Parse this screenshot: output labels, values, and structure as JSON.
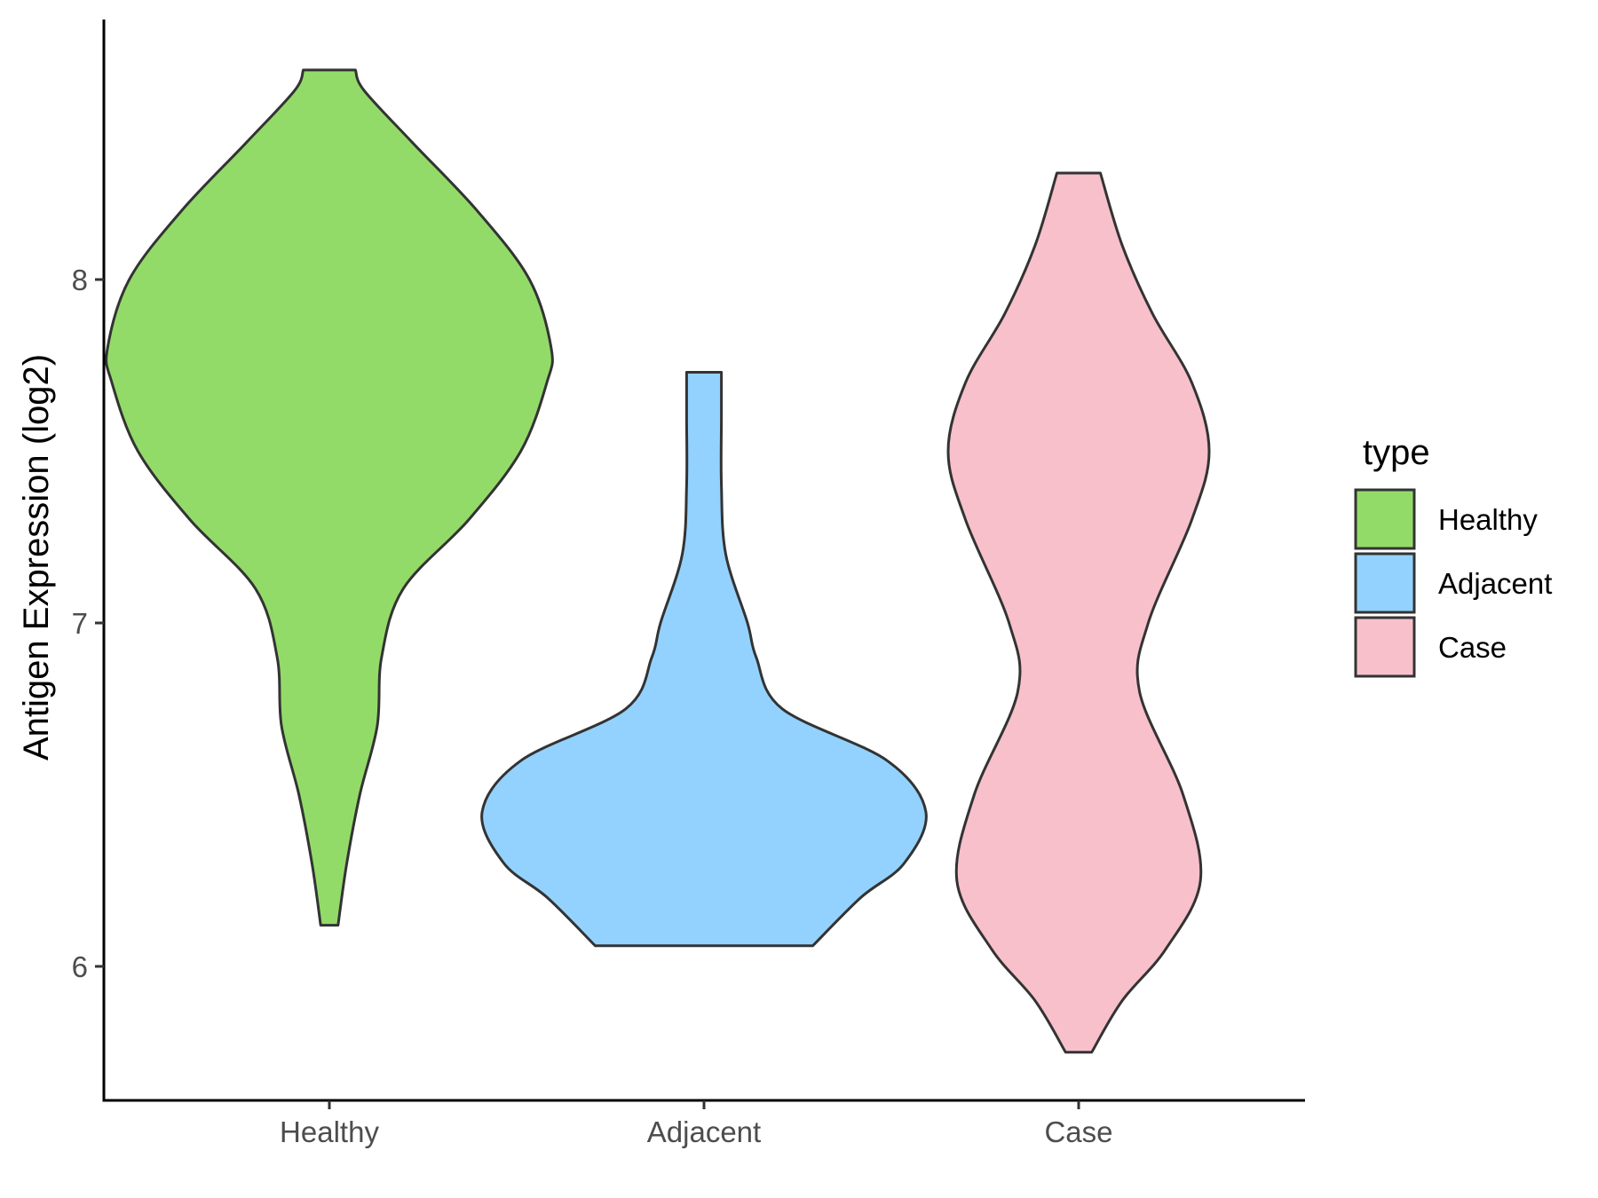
{
  "chart_data": {
    "type": "violin",
    "title": "",
    "xlabel": "",
    "ylabel": "Antigen Expression (log2)",
    "categories": [
      "Healthy",
      "Adjacent",
      "Case"
    ],
    "y_ticks": [
      "6",
      "7",
      "8"
    ],
    "ylim": [
      5.6,
      8.8
    ],
    "grid": false,
    "legend": {
      "title": "type",
      "placement": "right",
      "items": [
        {
          "label": "Healthy",
          "color": "#93DB69"
        },
        {
          "label": "Adjacent",
          "color": "#93D2FE"
        },
        {
          "label": "Case",
          "color": "#F7C0CB"
        }
      ]
    },
    "outline_color": "#333333",
    "series": [
      {
        "name": "Healthy",
        "color": "#93DB69",
        "min": 6.12,
        "max": 8.61,
        "density_profile": [
          [
            6.12,
            0.02
          ],
          [
            6.3,
            0.04
          ],
          [
            6.5,
            0.07
          ],
          [
            6.7,
            0.11
          ],
          [
            6.9,
            0.12
          ],
          [
            7.1,
            0.17
          ],
          [
            7.3,
            0.32
          ],
          [
            7.5,
            0.44
          ],
          [
            7.7,
            0.5
          ],
          [
            7.8,
            0.51
          ],
          [
            8.0,
            0.46
          ],
          [
            8.2,
            0.34
          ],
          [
            8.4,
            0.19
          ],
          [
            8.55,
            0.08
          ],
          [
            8.61,
            0.06
          ]
        ]
      },
      {
        "name": "Adjacent",
        "color": "#93D2FE",
        "min": 6.06,
        "max": 7.73,
        "density_profile": [
          [
            6.06,
            0.25
          ],
          [
            6.2,
            0.36
          ],
          [
            6.3,
            0.46
          ],
          [
            6.45,
            0.51
          ],
          [
            6.6,
            0.42
          ],
          [
            6.75,
            0.18
          ],
          [
            6.9,
            0.12
          ],
          [
            7.0,
            0.1
          ],
          [
            7.2,
            0.05
          ],
          [
            7.4,
            0.04
          ],
          [
            7.6,
            0.04
          ],
          [
            7.73,
            0.04
          ]
        ]
      },
      {
        "name": "Case",
        "color": "#F7C0CB",
        "min": 5.75,
        "max": 8.31,
        "density_profile": [
          [
            5.75,
            0.03
          ],
          [
            5.9,
            0.1
          ],
          [
            6.05,
            0.2
          ],
          [
            6.25,
            0.28
          ],
          [
            6.5,
            0.24
          ],
          [
            6.8,
            0.14
          ],
          [
            7.0,
            0.16
          ],
          [
            7.3,
            0.26
          ],
          [
            7.5,
            0.3
          ],
          [
            7.7,
            0.26
          ],
          [
            7.9,
            0.17
          ],
          [
            8.1,
            0.1
          ],
          [
            8.31,
            0.05
          ]
        ]
      }
    ]
  }
}
